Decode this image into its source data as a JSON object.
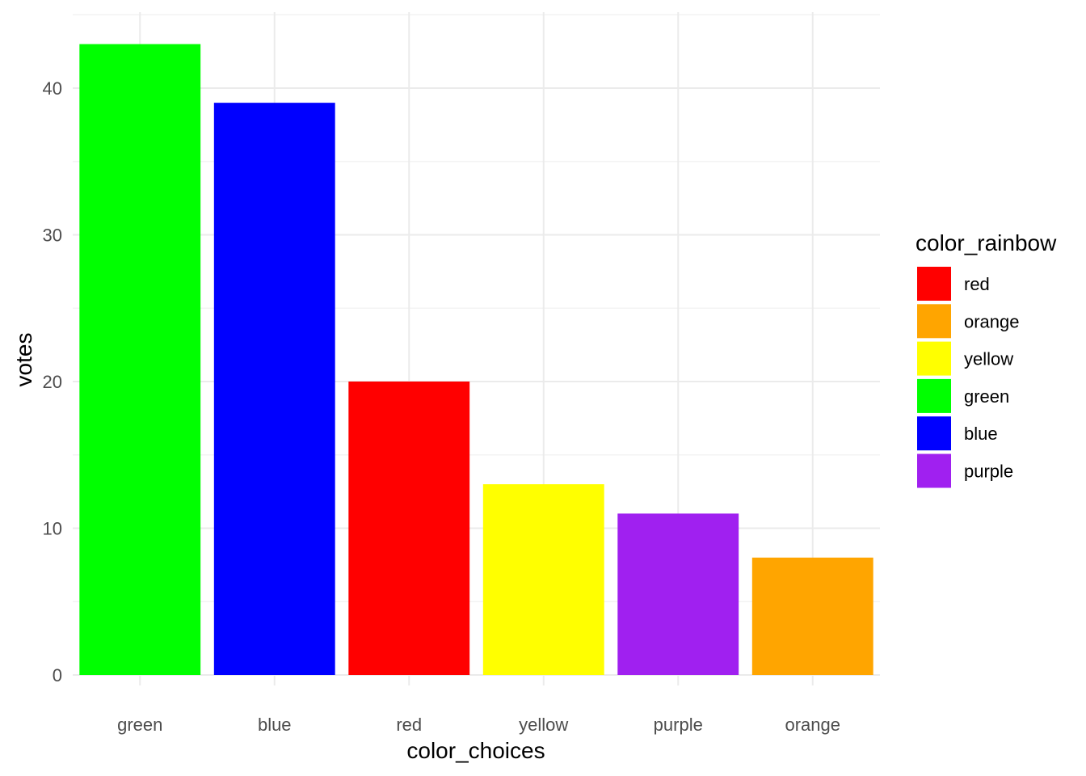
{
  "chart_data": {
    "type": "bar",
    "categories": [
      "green",
      "blue",
      "red",
      "yellow",
      "purple",
      "orange"
    ],
    "values": [
      43,
      39,
      20,
      13,
      11,
      8
    ],
    "bar_colors": [
      "#00ff00",
      "#0000ff",
      "#ff0000",
      "#ffff00",
      "#a020f0",
      "#ffa500"
    ],
    "xlabel": "color_choices",
    "ylabel": "votes",
    "ylim": [
      0,
      45
    ],
    "yticks": [
      0,
      10,
      20,
      30,
      40
    ],
    "grid": true,
    "legend": {
      "title": "color_rainbow",
      "placement": "right",
      "entries": [
        {
          "label": "red",
          "color": "#ff0000"
        },
        {
          "label": "orange",
          "color": "#ffa500"
        },
        {
          "label": "yellow",
          "color": "#ffff00"
        },
        {
          "label": "green",
          "color": "#00ff00"
        },
        {
          "label": "blue",
          "color": "#0000ff"
        },
        {
          "label": "purple",
          "color": "#a020f0"
        }
      ]
    }
  }
}
